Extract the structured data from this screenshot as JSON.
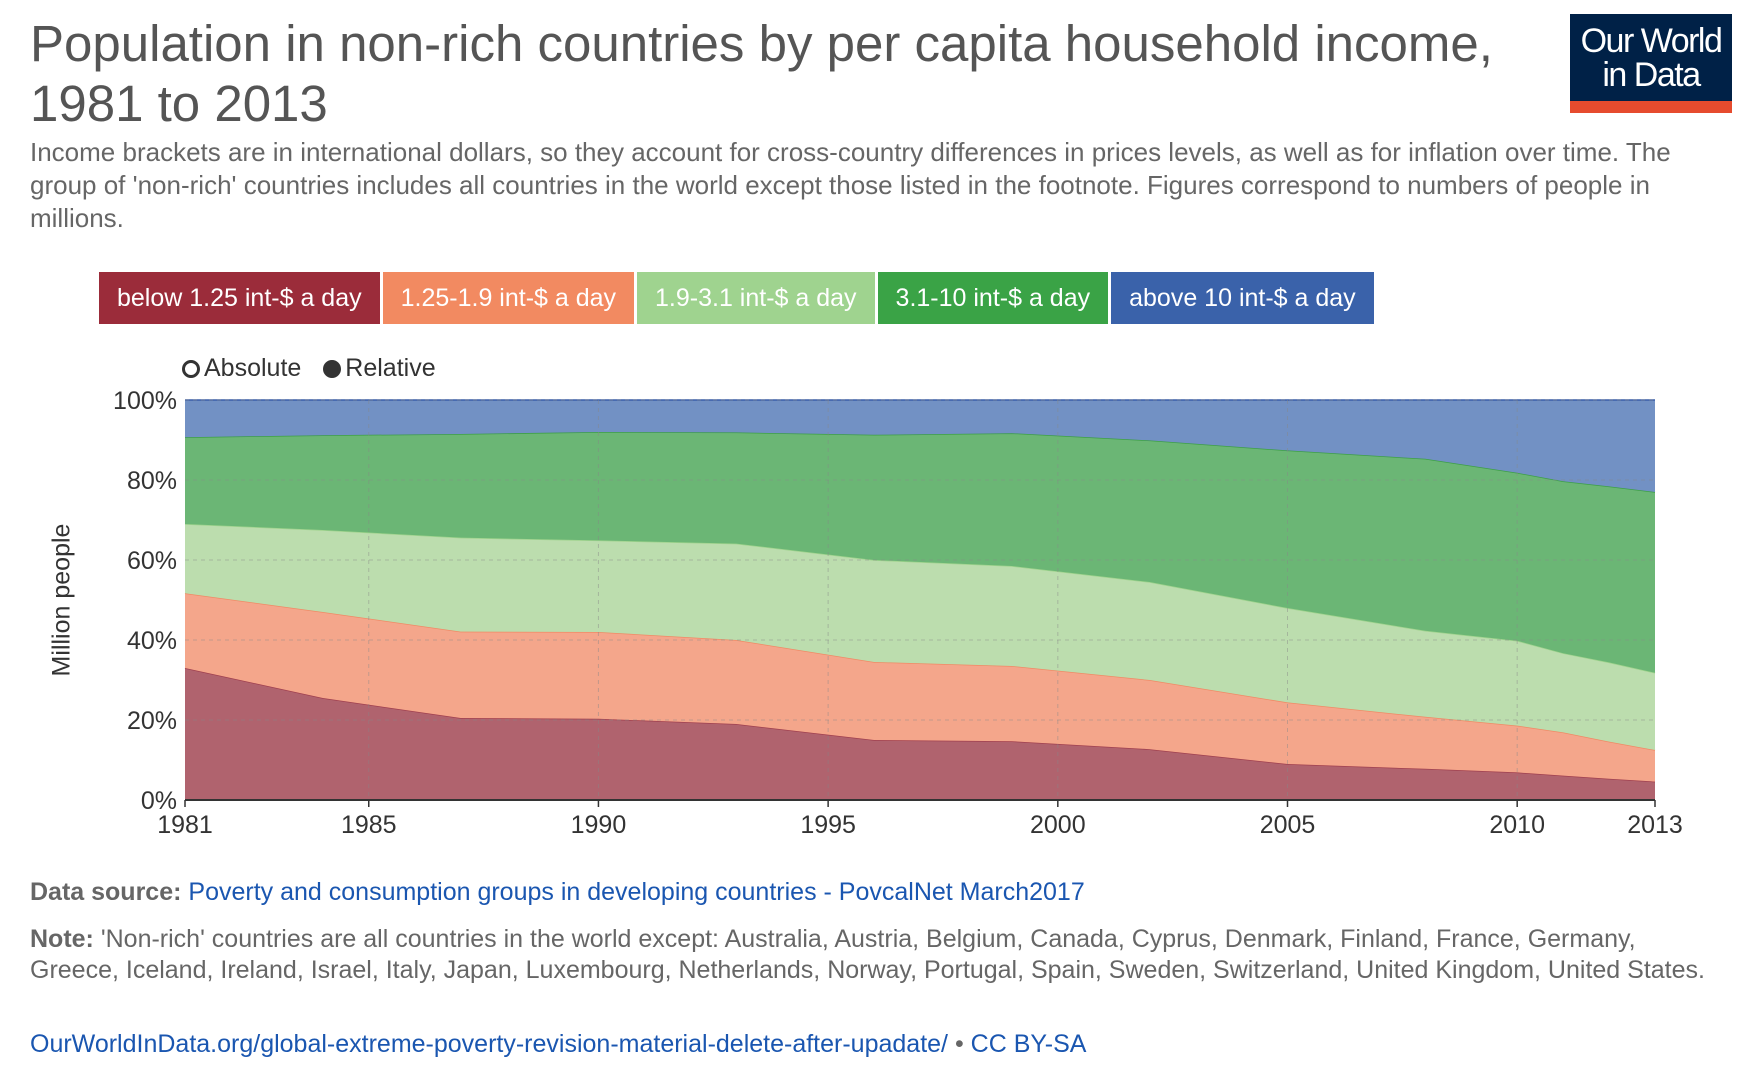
{
  "header": {
    "title": "Population in non-rich countries by per capita household income, 1981 to 2013",
    "subtitle": "Income brackets are in international dollars, so they account for cross-country differences in prices levels, as well as for inflation over time. The group of 'non-rich' countries includes all countries in the world except those listed in the footnote. Figures correspond to numbers of people in millions.",
    "logo_line1": "Our World",
    "logo_line2": "in Data"
  },
  "toggle": {
    "absolute_label": "Absolute",
    "relative_label": "Relative",
    "selected": "Relative"
  },
  "chart_data": {
    "type": "area",
    "stacked": true,
    "mode": "relative",
    "ylabel": "Million people",
    "ylim": [
      0,
      100
    ],
    "yticks": [
      "0%",
      "20%",
      "40%",
      "60%",
      "80%",
      "100%"
    ],
    "xlim": [
      1981,
      2013
    ],
    "xticks": [
      "1981",
      "1985",
      "1990",
      "1995",
      "2000",
      "2005",
      "2010",
      "2013"
    ],
    "grid": true,
    "legend_position": "top",
    "x": [
      1981,
      1984,
      1987,
      1990,
      1993,
      1996,
      1999,
      2002,
      2005,
      2008,
      2010,
      2011,
      2012,
      2013
    ],
    "series": [
      {
        "name": "below 1.25 int-$ a day",
        "color": "#a0404f",
        "fill": "#b0636e",
        "values": [
          33,
          25.5,
          20.5,
          20.3,
          19,
          15,
          14.7,
          12.7,
          9,
          7.8,
          6.9,
          6.1,
          5.3,
          4.6
        ]
      },
      {
        "name": "1.25-1.9 int-$ a day",
        "color": "#f08a65",
        "fill": "#f4a68b",
        "values": [
          18.7,
          21.5,
          21.6,
          21.7,
          21,
          19.5,
          18.8,
          17.3,
          15.4,
          13,
          11.7,
          10.8,
          9.3,
          7.9
        ]
      },
      {
        "name": "1.9-3.1 int-$ a day",
        "color": "#9fd38d",
        "fill": "#bcddae",
        "values": [
          17.3,
          20.5,
          23.5,
          22.9,
          24.1,
          25.5,
          25,
          24.5,
          23.6,
          21.5,
          21.2,
          19.8,
          19.8,
          19.3
        ]
      },
      {
        "name": "3.1-10 int-$ a day",
        "color": "#3d9f47",
        "fill": "#6bb675",
        "values": [
          21.7,
          23.7,
          25.9,
          27.1,
          27.8,
          31.3,
          33.2,
          35.4,
          39.4,
          43,
          42,
          43,
          44,
          45.2
        ]
      },
      {
        "name": "above 10 int-$ a day",
        "color": "#3a5ea8",
        "fill": "#7291c4",
        "values": [
          9.3,
          8.8,
          8.5,
          8,
          8.1,
          8.7,
          8.3,
          10.1,
          12.6,
          14.7,
          18.2,
          20.3,
          21.6,
          23
        ]
      }
    ]
  },
  "footer": {
    "source_label": "Data source:",
    "source_link": "Poverty and consumption groups in developing countries - PovcalNet March2017",
    "note_label": "Note:",
    "note_text": "'Non-rich' countries are all countries in the world except: Australia, Austria, Belgium, Canada, Cyprus, Denmark, Finland, France, Germany, Greece, Iceland, Ireland, Israel, Italy, Japan, Luxembourg, Netherlands, Norway, Portugal, Spain, Sweden, Switzerland, United Kingdom, United States.",
    "url": "OurWorldInData.org/global-extreme-poverty-revision-material-delete-after-upadate/",
    "separator": " • ",
    "license": "CC BY-SA"
  }
}
